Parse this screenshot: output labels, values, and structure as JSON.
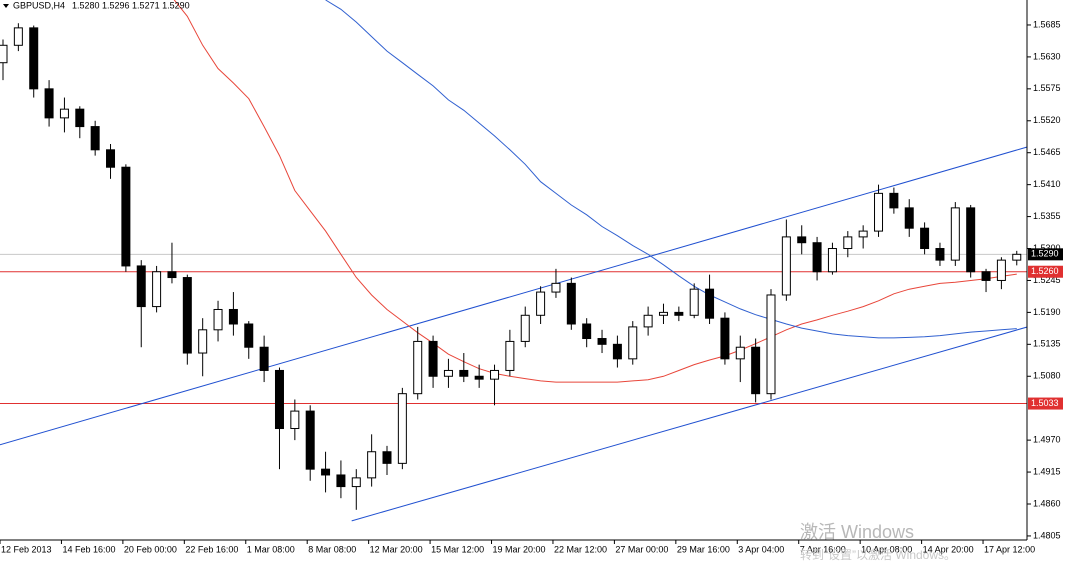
{
  "header": {
    "symbol": "GBPUSD,H4",
    "quote": "1.5280 1.5296 1.5271 1.5290"
  },
  "watermark": [
    "激活 Windows",
    "转到“设置”以激活 Windows。"
  ],
  "chart_data": {
    "type": "candlestick",
    "categories": [
      "12 Feb 2013",
      null,
      null,
      null,
      "14 Feb 16:00",
      null,
      null,
      null,
      "20 Feb 00:00",
      null,
      null,
      null,
      "22 Feb 16:00",
      null,
      null,
      null,
      "1 Mar 08:00",
      null,
      null,
      null,
      "8 Mar 08:00",
      null,
      null,
      null,
      "12 Mar 20:00",
      null,
      null,
      null,
      "15 Mar 12:00",
      null,
      null,
      null,
      "19 Mar 20:00",
      null,
      null,
      null,
      "22 Mar 12:00",
      null,
      null,
      null,
      "27 Mar 00:00",
      null,
      null,
      null,
      "29 Mar 16:00",
      null,
      null,
      null,
      "3 Apr 04:00",
      null,
      null,
      null,
      "7 Apr 16:00",
      null,
      null,
      null,
      "10 Apr 08:00",
      null,
      null,
      null,
      "14 Apr 20:00",
      null,
      null,
      null,
      "17 Apr 12:00",
      null,
      null
    ],
    "ohlc": [
      [
        1.562,
        1.566,
        1.559,
        1.565
      ],
      [
        1.565,
        1.5688,
        1.564,
        1.568
      ],
      [
        1.568,
        1.5684,
        1.556,
        1.5575
      ],
      [
        1.5575,
        1.559,
        1.551,
        1.5525
      ],
      [
        1.5525,
        1.556,
        1.55,
        1.554
      ],
      [
        1.554,
        1.5545,
        1.549,
        1.551
      ],
      [
        1.551,
        1.552,
        1.546,
        1.547
      ],
      [
        1.547,
        1.548,
        1.542,
        1.544
      ],
      [
        1.544,
        1.5445,
        1.526,
        1.527
      ],
      [
        1.527,
        1.528,
        1.513,
        1.52
      ],
      [
        1.52,
        1.527,
        1.519,
        1.526
      ],
      [
        1.526,
        1.531,
        1.524,
        1.525
      ],
      [
        1.525,
        1.5255,
        1.51,
        1.512
      ],
      [
        1.512,
        1.518,
        1.508,
        1.516
      ],
      [
        1.516,
        1.521,
        1.514,
        1.5195
      ],
      [
        1.5195,
        1.5225,
        1.515,
        1.517
      ],
      [
        1.517,
        1.5175,
        1.511,
        1.513
      ],
      [
        1.513,
        1.515,
        1.507,
        1.509
      ],
      [
        1.509,
        1.5095,
        1.492,
        1.499
      ],
      [
        1.499,
        1.504,
        1.497,
        1.502
      ],
      [
        1.502,
        1.503,
        1.49,
        1.492
      ],
      [
        1.492,
        1.495,
        1.488,
        1.491
      ],
      [
        1.491,
        1.4935,
        1.487,
        1.489
      ],
      [
        1.489,
        1.492,
        1.485,
        1.4905
      ],
      [
        1.4905,
        1.498,
        1.489,
        1.495
      ],
      [
        1.495,
        1.496,
        1.491,
        1.493
      ],
      [
        1.493,
        1.506,
        1.492,
        1.505
      ],
      [
        1.505,
        1.5165,
        1.504,
        1.514
      ],
      [
        1.514,
        1.515,
        1.506,
        1.508
      ],
      [
        1.508,
        1.511,
        1.506,
        1.509
      ],
      [
        1.509,
        1.512,
        1.507,
        1.508
      ],
      [
        1.508,
        1.51,
        1.506,
        1.5075
      ],
      [
        1.5075,
        1.51,
        1.503,
        1.509
      ],
      [
        1.509,
        1.516,
        1.508,
        1.514
      ],
      [
        1.514,
        1.52,
        1.513,
        1.5185
      ],
      [
        1.5185,
        1.5235,
        1.517,
        1.5225
      ],
      [
        1.5225,
        1.5265,
        1.5215,
        1.524
      ],
      [
        1.524,
        1.525,
        1.516,
        1.517
      ],
      [
        1.517,
        1.518,
        1.513,
        1.5145
      ],
      [
        1.5145,
        1.516,
        1.512,
        1.5135
      ],
      [
        1.5135,
        1.515,
        1.5095,
        1.511
      ],
      [
        1.511,
        1.5175,
        1.51,
        1.5165
      ],
      [
        1.5165,
        1.52,
        1.515,
        1.5185
      ],
      [
        1.5185,
        1.5205,
        1.517,
        1.519
      ],
      [
        1.519,
        1.52,
        1.5175,
        1.5185
      ],
      [
        1.5185,
        1.524,
        1.518,
        1.523
      ],
      [
        1.523,
        1.5255,
        1.517,
        1.518
      ],
      [
        1.518,
        1.519,
        1.51,
        1.511
      ],
      [
        1.511,
        1.515,
        1.507,
        1.513
      ],
      [
        1.513,
        1.5145,
        1.5035,
        1.505
      ],
      [
        1.505,
        1.523,
        1.504,
        1.522
      ],
      [
        1.522,
        1.535,
        1.521,
        1.532
      ],
      [
        1.532,
        1.534,
        1.529,
        1.531
      ],
      [
        1.531,
        1.532,
        1.5245,
        1.526
      ],
      [
        1.526,
        1.531,
        1.5255,
        1.53
      ],
      [
        1.53,
        1.533,
        1.5285,
        1.532
      ],
      [
        1.532,
        1.534,
        1.53,
        1.533
      ],
      [
        1.533,
        1.541,
        1.532,
        1.5395
      ],
      [
        1.5395,
        1.5405,
        1.536,
        1.537
      ],
      [
        1.537,
        1.5385,
        1.532,
        1.5335
      ],
      [
        1.5335,
        1.5345,
        1.529,
        1.53
      ],
      [
        1.53,
        1.531,
        1.527,
        1.528
      ],
      [
        1.528,
        1.538,
        1.527,
        1.537
      ],
      [
        1.537,
        1.5375,
        1.525,
        1.526
      ],
      [
        1.526,
        1.5265,
        1.5225,
        1.5245
      ],
      [
        1.5245,
        1.5285,
        1.523,
        1.528
      ],
      [
        1.528,
        1.5296,
        1.5271,
        1.529
      ]
    ],
    "series": [
      {
        "color": "#e8463a",
        "values": [
          null,
          null,
          null,
          null,
          null,
          null,
          null,
          null,
          null,
          null,
          null,
          1.5733,
          1.57,
          1.565,
          1.561,
          1.5585,
          1.5558,
          1.551,
          1.546,
          1.54,
          1.5365,
          1.533,
          1.529,
          1.525,
          1.522,
          1.5195,
          1.5175,
          1.5155,
          1.5137,
          1.5118,
          1.5105,
          1.5093,
          1.5085,
          1.508,
          1.5076,
          1.5072,
          1.507,
          1.507,
          1.507,
          1.507,
          1.507,
          1.5072,
          1.5074,
          1.508,
          1.509,
          1.51,
          1.5108,
          1.5115,
          1.5125,
          1.5136,
          1.5148,
          1.516,
          1.517,
          1.5177,
          1.5185,
          1.5192,
          1.52,
          1.521,
          1.5222,
          1.523,
          1.5235,
          1.524,
          1.5242,
          1.5245,
          1.5248,
          1.5252,
          1.5256
        ]
      },
      {
        "color": "#3060d0",
        "values": [
          null,
          null,
          null,
          null,
          null,
          null,
          null,
          null,
          null,
          null,
          null,
          null,
          null,
          null,
          null,
          null,
          null,
          null,
          null,
          null,
          null,
          1.5728,
          1.5712,
          1.569,
          1.5665,
          1.564,
          1.562,
          1.56,
          1.558,
          1.5556,
          1.5538,
          1.5516,
          1.5494,
          1.547,
          1.5445,
          1.5415,
          1.5395,
          1.5375,
          1.5358,
          1.5338,
          1.5322,
          1.5305,
          1.529,
          1.5272,
          1.5253,
          1.5235,
          1.522,
          1.5208,
          1.5196,
          1.5186,
          1.5178,
          1.517,
          1.5163,
          1.5158,
          1.5153,
          1.515,
          1.5148,
          1.5146,
          1.5146,
          1.5147,
          1.5148,
          1.515,
          1.5153,
          1.5156,
          1.5158,
          1.516,
          1.5162
        ]
      }
    ],
    "trendlines": [
      {
        "color": "#2050d0",
        "x": [
          -0.2,
          66.7
        ],
        "y": [
          1.4962,
          1.5475
        ]
      },
      {
        "color": "#2050d0",
        "x": [
          22.7,
          66.7
        ],
        "y": [
          1.4831,
          1.5165
        ]
      }
    ],
    "hlines": [
      {
        "value": 1.529,
        "label": "1.5290",
        "color": "#c8c8c8",
        "label_color": "#000000"
      },
      {
        "value": 1.526,
        "label": "1.5260",
        "color": "#e03030",
        "label_color": "#e03030"
      },
      {
        "value": 1.5033,
        "label": "1.5033",
        "color": "#e03030",
        "label_color": "#e03030"
      }
    ],
    "up_color": "#ffffff",
    "down_color": "#000000",
    "ylim": [
      1.4798,
      1.5728
    ],
    "yticks": [
      1.5685,
      {
        "value": 1.563,
        "label": "1.5630"
      },
      1.5575,
      {
        "value": 1.552,
        "label": "1.5520"
      },
      1.5465,
      {
        "value": 1.541,
        "label": "1.5410"
      },
      1.5355,
      {
        "value": 1.53,
        "label": "1.5300"
      },
      1.5245,
      {
        "value": 1.519,
        "label": "1.5190"
      },
      1.5135,
      {
        "value": 1.508,
        "label": "1.5080"
      },
      {
        "value": 1.497,
        "label": "1.4970"
      },
      1.4915,
      {
        "value": 1.486,
        "label": "1.4860"
      },
      1.4805
    ]
  }
}
